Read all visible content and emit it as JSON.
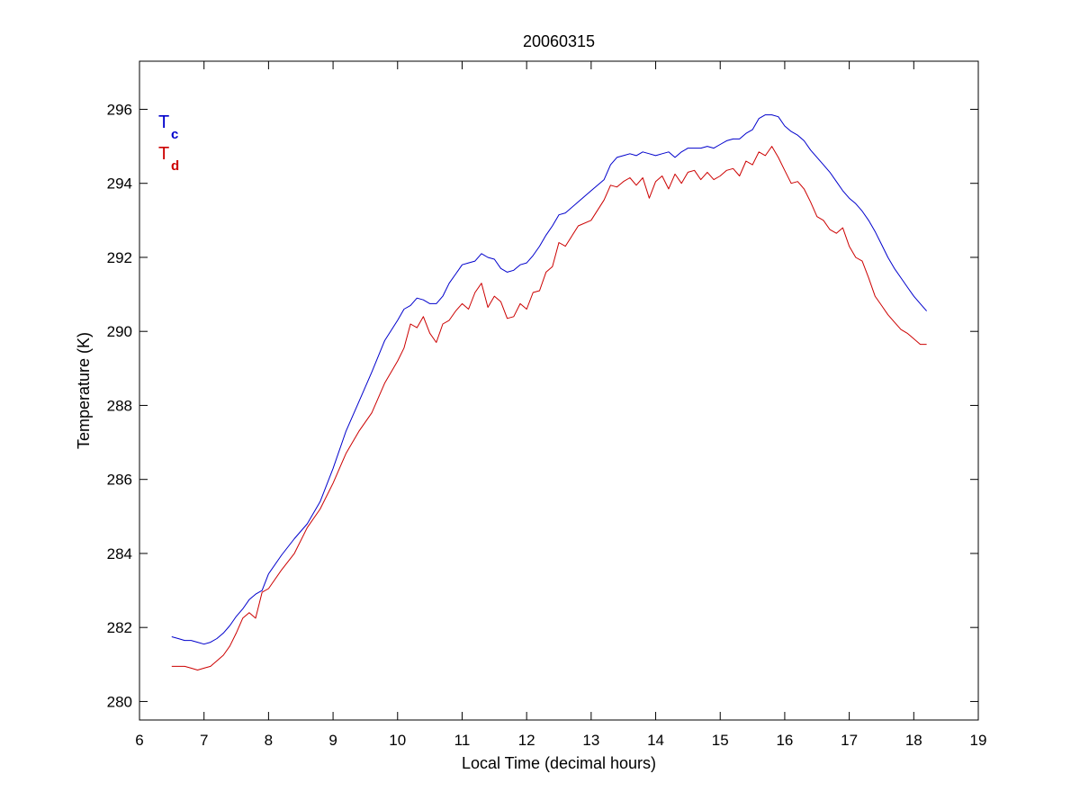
{
  "chart_data": {
    "type": "line",
    "title": "20060315",
    "xlabel": "Local Time (decimal hours)",
    "ylabel": "Temperature (K)",
    "xlim": [
      6,
      19
    ],
    "ylim": [
      279.5,
      297.3
    ],
    "xticks": [
      6,
      7,
      8,
      9,
      10,
      11,
      12,
      13,
      14,
      15,
      16,
      17,
      18,
      19
    ],
    "yticks": [
      280,
      282,
      284,
      286,
      288,
      290,
      292,
      294,
      296
    ],
    "grid": false,
    "legend_position": "top-left",
    "series": [
      {
        "name": "T",
        "subscript": "c",
        "color": "#0000cc",
        "x": [
          6.5,
          6.6,
          6.7,
          6.8,
          6.9,
          7.0,
          7.1,
          7.2,
          7.3,
          7.4,
          7.5,
          7.6,
          7.7,
          7.8,
          7.9,
          8.0,
          8.2,
          8.4,
          8.6,
          8.8,
          9.0,
          9.2,
          9.4,
          9.6,
          9.8,
          10.0,
          10.1,
          10.2,
          10.3,
          10.4,
          10.5,
          10.6,
          10.7,
          10.8,
          10.9,
          11.0,
          11.1,
          11.2,
          11.3,
          11.4,
          11.5,
          11.6,
          11.7,
          11.8,
          11.9,
          12.0,
          12.1,
          12.2,
          12.3,
          12.4,
          12.5,
          12.6,
          12.8,
          13.0,
          13.2,
          13.3,
          13.4,
          13.5,
          13.6,
          13.7,
          13.8,
          13.9,
          14.0,
          14.1,
          14.2,
          14.3,
          14.4,
          14.5,
          14.6,
          14.7,
          14.8,
          14.9,
          15.0,
          15.1,
          15.2,
          15.3,
          15.4,
          15.5,
          15.6,
          15.7,
          15.8,
          15.9,
          16.0,
          16.1,
          16.2,
          16.3,
          16.4,
          16.5,
          16.6,
          16.7,
          16.8,
          16.9,
          17.0,
          17.1,
          17.2,
          17.3,
          17.4,
          17.5,
          17.6,
          17.7,
          17.8,
          17.9,
          18.0,
          18.1,
          18.2
        ],
        "y": [
          281.75,
          281.7,
          281.65,
          281.65,
          281.6,
          281.55,
          281.6,
          281.7,
          281.85,
          282.05,
          282.3,
          282.5,
          282.75,
          282.9,
          283.0,
          283.45,
          283.95,
          284.4,
          284.8,
          285.4,
          286.3,
          287.3,
          288.1,
          288.9,
          289.75,
          290.3,
          290.6,
          290.7,
          290.9,
          290.85,
          290.75,
          290.75,
          290.95,
          291.3,
          291.55,
          291.8,
          291.85,
          291.9,
          292.1,
          292.0,
          291.95,
          291.7,
          291.6,
          291.65,
          291.8,
          291.85,
          292.05,
          292.3,
          292.6,
          292.85,
          293.15,
          293.2,
          293.5,
          293.8,
          294.1,
          294.5,
          294.7,
          294.75,
          294.8,
          294.75,
          294.85,
          294.8,
          294.75,
          294.8,
          294.85,
          294.7,
          294.85,
          294.95,
          294.95,
          294.95,
          295.0,
          294.95,
          295.05,
          295.15,
          295.2,
          295.2,
          295.35,
          295.45,
          295.75,
          295.85,
          295.85,
          295.8,
          295.55,
          295.4,
          295.3,
          295.15,
          294.9,
          294.7,
          294.5,
          294.3,
          294.05,
          293.8,
          293.6,
          293.45,
          293.25,
          293.0,
          292.7,
          292.35,
          292.0,
          291.7,
          291.45,
          291.2,
          290.95,
          290.75,
          290.55
        ]
      },
      {
        "name": "T",
        "subscript": "d",
        "color": "#cc0000",
        "x": [
          6.5,
          6.6,
          6.7,
          6.8,
          6.9,
          7.0,
          7.1,
          7.2,
          7.3,
          7.4,
          7.5,
          7.6,
          7.7,
          7.8,
          7.9,
          8.0,
          8.2,
          8.4,
          8.6,
          8.8,
          9.0,
          9.2,
          9.4,
          9.6,
          9.8,
          10.0,
          10.1,
          10.2,
          10.3,
          10.4,
          10.5,
          10.6,
          10.7,
          10.8,
          10.9,
          11.0,
          11.1,
          11.2,
          11.3,
          11.4,
          11.5,
          11.6,
          11.7,
          11.8,
          11.9,
          12.0,
          12.1,
          12.2,
          12.3,
          12.4,
          12.5,
          12.6,
          12.8,
          13.0,
          13.2,
          13.3,
          13.4,
          13.5,
          13.6,
          13.7,
          13.8,
          13.9,
          14.0,
          14.1,
          14.2,
          14.3,
          14.4,
          14.5,
          14.6,
          14.7,
          14.8,
          14.9,
          15.0,
          15.1,
          15.2,
          15.3,
          15.4,
          15.5,
          15.6,
          15.7,
          15.8,
          15.9,
          16.0,
          16.1,
          16.2,
          16.3,
          16.4,
          16.5,
          16.6,
          16.7,
          16.8,
          16.9,
          17.0,
          17.1,
          17.2,
          17.3,
          17.4,
          17.5,
          17.6,
          17.7,
          17.8,
          17.9,
          18.0,
          18.1,
          18.2
        ],
        "y": [
          280.95,
          280.95,
          280.95,
          280.9,
          280.85,
          280.9,
          280.95,
          281.1,
          281.25,
          281.5,
          281.85,
          282.25,
          282.4,
          282.25,
          282.95,
          283.05,
          283.55,
          284.0,
          284.7,
          285.2,
          285.9,
          286.7,
          287.3,
          287.8,
          288.6,
          289.2,
          289.55,
          290.2,
          290.1,
          290.4,
          289.95,
          289.7,
          290.2,
          290.3,
          290.55,
          290.75,
          290.6,
          291.05,
          291.3,
          290.65,
          290.95,
          290.8,
          290.35,
          290.4,
          290.75,
          290.6,
          291.05,
          291.1,
          291.6,
          291.75,
          292.4,
          292.3,
          292.85,
          293.0,
          293.55,
          293.95,
          293.9,
          294.05,
          294.15,
          293.95,
          294.15,
          293.6,
          294.05,
          294.2,
          293.85,
          294.25,
          294.0,
          294.3,
          294.35,
          294.1,
          294.3,
          294.1,
          294.2,
          294.35,
          294.4,
          294.2,
          294.6,
          294.5,
          294.85,
          294.75,
          295.0,
          294.7,
          294.35,
          294.0,
          294.05,
          293.85,
          293.5,
          293.1,
          293.0,
          292.75,
          292.65,
          292.8,
          292.3,
          292.0,
          291.9,
          291.45,
          290.95,
          290.7,
          290.45,
          290.25,
          290.05,
          289.95,
          289.8,
          289.65,
          289.65
        ]
      }
    ]
  }
}
